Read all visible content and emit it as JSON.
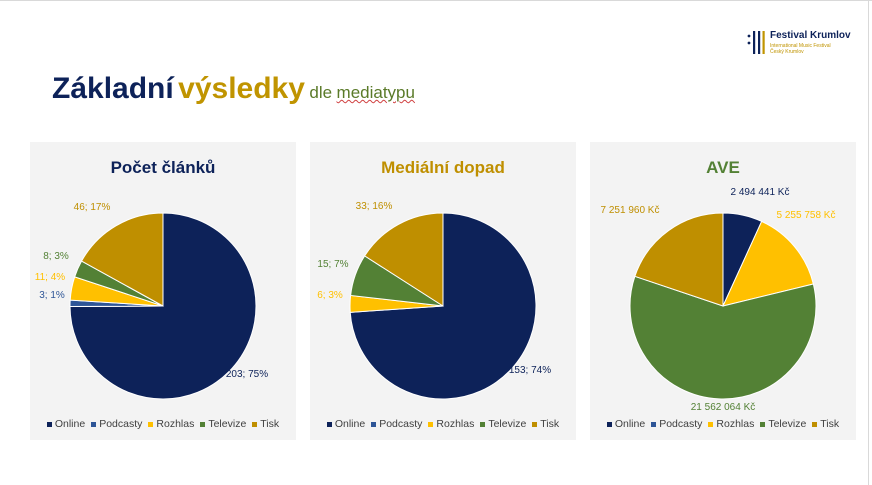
{
  "colors": {
    "Online": "#0d2259",
    "Podcasty": "#2e5597",
    "Rozhlas": "#ffc000",
    "Televize": "#538135",
    "Tisk": "#bf8f00",
    "title_dark": "#0d2259",
    "title_gold": "#c09400",
    "title_green": "#5a7a28"
  },
  "logo": {
    "icon": "festival-krumlov-logo-icon",
    "name": "Festival Krumlov",
    "line1": "International Music Festival",
    "line2": "Český Krumlov"
  },
  "title": {
    "part1": "Základní",
    "part2": "výsledky",
    "part3": "dle",
    "part4": "mediatypu"
  },
  "chart_data": [
    {
      "type": "pie",
      "title": "Počet článků",
      "categories": [
        "Online",
        "Podcasty",
        "Rozhlas",
        "Televize",
        "Tisk"
      ],
      "values": [
        203,
        3,
        11,
        8,
        46
      ],
      "labels": [
        "203; 75%",
        "3; 1%",
        "11; 4%",
        "8; 3%",
        "46; 17%"
      ],
      "legend": "bottom"
    },
    {
      "type": "pie",
      "title": "Mediální dopad",
      "categories": [
        "Online",
        "Podcasty",
        "Rozhlas",
        "Televize",
        "Tisk"
      ],
      "values": [
        153,
        0,
        6,
        15,
        33
      ],
      "labels": [
        "153; 74%",
        "",
        "6; 3%",
        "15; 7%",
        "33; 16%"
      ],
      "legend": "bottom"
    },
    {
      "type": "pie",
      "title": "AVE",
      "categories": [
        "Online",
        "Podcasty",
        "Rozhlas",
        "Televize",
        "Tisk"
      ],
      "values": [
        2494441,
        0,
        5255758,
        21562064,
        7251960
      ],
      "labels": [
        "2 494 441 Kč",
        "",
        "5 255 758 Kč",
        "21 562 064 Kč",
        "7 251 960 Kč"
      ],
      "legend": "bottom"
    }
  ]
}
